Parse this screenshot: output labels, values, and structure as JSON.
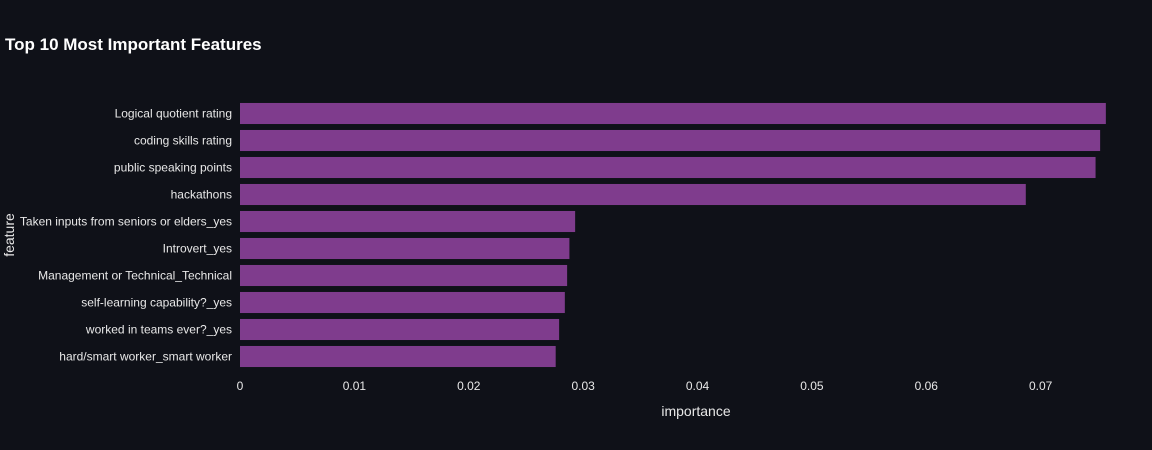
{
  "chart_data": {
    "type": "bar",
    "orientation": "horizontal",
    "title": "Top 10 Most Important Features",
    "xlabel": "importance",
    "ylabel": "feature",
    "xlim": [
      0,
      0.0758
    ],
    "xticks": [
      0,
      0.01,
      0.02,
      0.03,
      0.04,
      0.05,
      0.06,
      0.07
    ],
    "xtick_labels": [
      "0",
      "0.01",
      "0.02",
      "0.03",
      "0.04",
      "0.05",
      "0.06",
      "0.07"
    ],
    "grid": false,
    "legend": "none",
    "bar_color": "#7f3c8d",
    "background_color": "#0f1118",
    "categories": [
      "Logical quotient rating",
      "coding skills rating",
      "public speaking points",
      "hackathons",
      "Taken inputs from seniors or elders_yes",
      "Introvert_yes",
      "Management or Technical_Technical",
      "self-learning capability?_yes",
      "worked in teams ever?_yes",
      "hard/smart worker_smart worker"
    ],
    "values": [
      0.0757,
      0.0752,
      0.0748,
      0.0687,
      0.0293,
      0.0288,
      0.0286,
      0.0284,
      0.0279,
      0.0276
    ]
  }
}
